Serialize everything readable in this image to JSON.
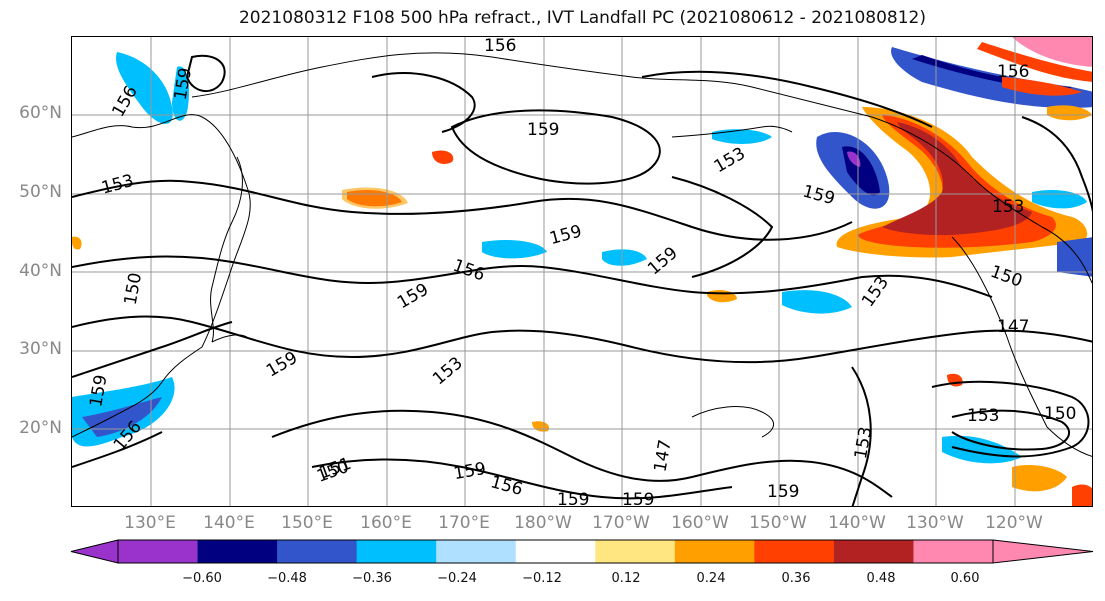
{
  "title": "2021080312 F108 500 hPa refract., IVT Landfall PC (2021080612 - 2021080812)",
  "lat_labels": [
    "60°N",
    "50°N",
    "40°N",
    "30°N",
    "20°N"
  ],
  "lon_labels": [
    "130°E",
    "140°E",
    "150°E",
    "160°E",
    "170°E",
    "180°W",
    "170°W",
    "160°W",
    "150°W",
    "140°W",
    "130°W",
    "120°W"
  ],
  "colorbar": {
    "tick_labels": [
      "−0.60",
      "−0.48",
      "−0.36",
      "−0.24",
      "−0.12",
      "0.12",
      "0.24",
      "0.36",
      "0.48",
      "0.60"
    ],
    "colors": [
      "#9933cc",
      "#000080",
      "#3355cc",
      "#00bfff",
      "#b0e0ff",
      "#ffffff",
      "#ffe680",
      "#ffa000",
      "#ff4000",
      "#b22222",
      "#ff88b0"
    ]
  },
  "contour_labels": [
    "156",
    "156",
    "159",
    "156",
    "159",
    "153",
    "159",
    "153",
    "159",
    "156",
    "159",
    "153",
    "159",
    "153",
    "150",
    "147",
    "153",
    "150",
    "159",
    "153",
    "156",
    "150",
    "159",
    "151",
    "147",
    "159",
    "156",
    "159",
    "159",
    "153",
    "159",
    "150"
  ]
}
